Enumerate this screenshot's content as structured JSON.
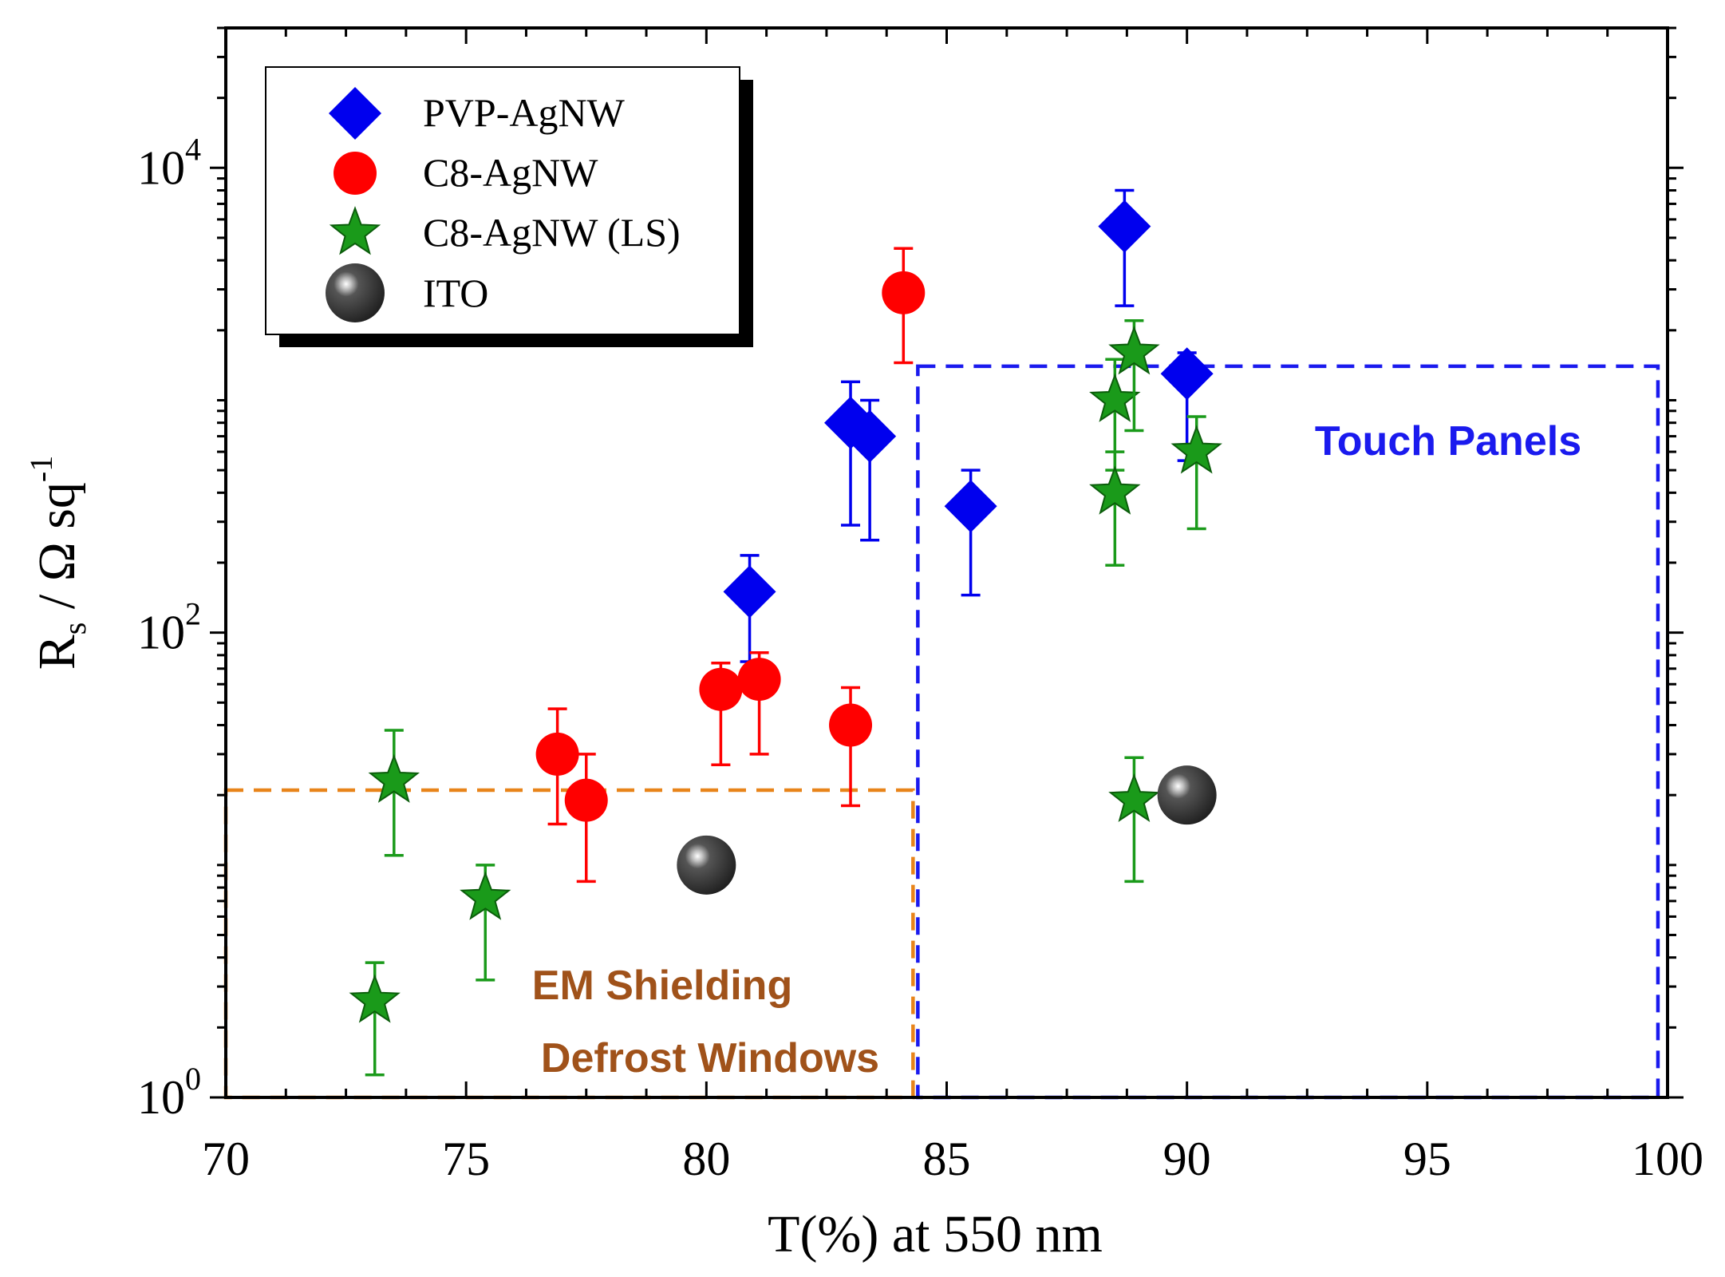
{
  "chart_data": {
    "type": "scatter",
    "title": "",
    "xlabel": "T(%) at 550 nm",
    "ylabel": {
      "main": "R",
      "sub": "s",
      "rest": " / Ω sq",
      "sup": "-1"
    },
    "xlim": [
      70,
      100
    ],
    "ylim": [
      1,
      40000
    ],
    "yscale": "log",
    "x_ticks": [
      "70",
      "75",
      "80",
      "85",
      "90",
      "95",
      "100"
    ],
    "y_ticks": [
      {
        "base": "10",
        "exp": "0"
      },
      {
        "base": "10",
        "exp": "2"
      },
      {
        "base": "10",
        "exp": "4"
      }
    ],
    "grid": false,
    "legend_position": "top-left",
    "series": [
      {
        "name": "PVP-AgNW",
        "marker": "diamond",
        "color": "#0000ee",
        "points": [
          {
            "x": 80.9,
            "y": 150,
            "err_low": 75,
            "err_high": 215
          },
          {
            "x": 83.0,
            "y": 800,
            "err_low": 290,
            "err_high": 1200
          },
          {
            "x": 83.4,
            "y": 700,
            "err_low": 250,
            "err_high": 1000
          },
          {
            "x": 85.5,
            "y": 350,
            "err_low": 145,
            "err_high": 500
          },
          {
            "x": 88.7,
            "y": 5600,
            "err_low": 2550,
            "err_high": 8000
          },
          {
            "x": 90.0,
            "y": 1300,
            "err_low": 550,
            "err_high": 1600
          }
        ]
      },
      {
        "name": "C8-AgNW",
        "marker": "circle",
        "color": "#ff0000",
        "points": [
          {
            "x": 76.9,
            "y": 30,
            "err_low": 15,
            "err_high": 47
          },
          {
            "x": 77.5,
            "y": 19,
            "err_low": 8.5,
            "err_high": 30
          },
          {
            "x": 80.3,
            "y": 57,
            "err_low": 27,
            "err_high": 74
          },
          {
            "x": 81.1,
            "y": 63,
            "err_low": 30,
            "err_high": 82
          },
          {
            "x": 83.0,
            "y": 40,
            "err_low": 18,
            "err_high": 58
          },
          {
            "x": 84.1,
            "y": 2900,
            "err_low": 1450,
            "err_high": 4500
          }
        ]
      },
      {
        "name": "C8-AgNW (LS)",
        "marker": "star",
        "color": "#1a9a1a",
        "points": [
          {
            "x": 73.1,
            "y": 2.6,
            "err_low": 1.25,
            "err_high": 3.8
          },
          {
            "x": 73.5,
            "y": 23,
            "err_low": 11,
            "err_high": 38
          },
          {
            "x": 75.4,
            "y": 7.2,
            "err_low": 3.2,
            "err_high": 10
          },
          {
            "x": 88.5,
            "y": 1000,
            "err_low": 500,
            "err_high": 1500
          },
          {
            "x": 88.5,
            "y": 400,
            "err_low": 195,
            "err_high": 600
          },
          {
            "x": 88.9,
            "y": 1600,
            "err_low": 740,
            "err_high": 2200
          },
          {
            "x": 88.9,
            "y": 19,
            "err_low": 8.5,
            "err_high": 29
          },
          {
            "x": 90.2,
            "y": 600,
            "err_low": 280,
            "err_high": 850
          }
        ]
      },
      {
        "name": "ITO",
        "marker": "sphere",
        "color": "#333333",
        "points": [
          {
            "x": 80.0,
            "y": 10
          },
          {
            "x": 90.0,
            "y": 20
          }
        ]
      }
    ],
    "regions": [
      {
        "name": "em",
        "lines": [
          "EM Shielding",
          "Defrost Windows"
        ],
        "color": "#e8841a",
        "text_color": "#a0521a",
        "x_range": [
          70,
          84.3
        ],
        "y_range": [
          1,
          21
        ]
      },
      {
        "name": "touch",
        "lines": [
          "Touch Panels"
        ],
        "color": "#1a1aee",
        "text_color": "#1a1aee",
        "x_range": [
          84.4,
          99.8
        ],
        "y_range": [
          1,
          1400
        ]
      }
    ]
  }
}
